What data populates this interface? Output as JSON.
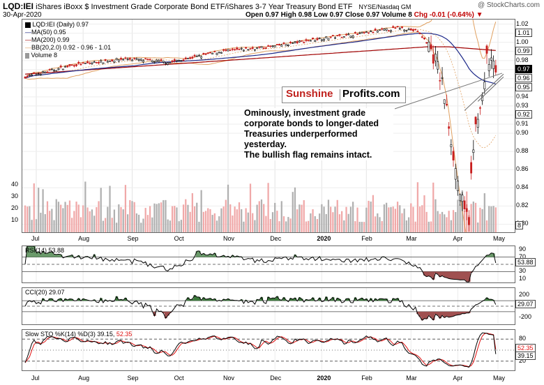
{
  "header": {
    "symbol": "LQD:IEI",
    "name": "iShares iBoxx $ Investment Grade Corporate Bond ETF/iShares 3-7 Year Treasury Bond ETF",
    "exchange": "NYSE/Nasdaq GM",
    "watermark": "@ StockCharts.com",
    "date": "30-Apr-2020",
    "open": "Open 0.97",
    "high": "High 0.98",
    "low": "Low 0.97",
    "close": "Close 0.97",
    "volume": "Volume 8",
    "change": "Chg -0.01 (-0.64%)"
  },
  "colors": {
    "up": "#000000",
    "down": "#c81e1e",
    "ma50": "#1e2a8a",
    "ma200": "#a00000",
    "bb": "#e0a060",
    "vol_up": "#b0b0b0",
    "vol_down": "#f0a8a8",
    "rsi_fill": "#a05050",
    "cci_fill_up": "#3c7a3c",
    "sto_k": "#000000",
    "sto_d": "#e01010"
  },
  "legend": {
    "main": "LQD:IEI (Daily) 0.97",
    "ma50": "MA(50) 0.95",
    "ma200": "MA(200) 0.99",
    "bb": "BB(20,2.0) 0.92 - 0.96 - 1.01",
    "volume": "Volume 8",
    "rsi": "RSI(14) 53.88",
    "cci": "CCI(20) 29.07",
    "sto_prefix": "Slow STO %K(14) %D(3) 39.15,",
    "sto_d_value": "52.35"
  },
  "logo": {
    "part1": "Sunshine",
    "part2": "Profits.com"
  },
  "annotation": [
    "Ominously, investment grade",
    "corporate bonds to longer-dated",
    "Treasuries underperformed",
    "yesterday.",
    "The bullish flag remains intact."
  ],
  "x_labels": [
    "Jul",
    "Aug",
    "Sep",
    "Oct",
    "Nov",
    "Dec",
    "2020",
    "Feb",
    "Mar",
    "Apr",
    "May"
  ],
  "price_axis": [
    "1.02",
    "1.01",
    "1.00",
    "0.99",
    "0.98",
    "0.97",
    "0.96",
    "0.95",
    "0.94",
    "0.93",
    "0.92",
    "0.91",
    "0.90",
    "0.88",
    "0.86",
    "0.84",
    "0.82",
    "0.80"
  ],
  "price_tags": [
    "1.01",
    "0.99",
    "0.97",
    "0.96",
    "0.95",
    "0.92",
    "8"
  ],
  "volume_axis": [
    "40",
    "30",
    "20",
    "10"
  ],
  "rsi_axis": [
    "90",
    "70",
    "30",
    "10"
  ],
  "rsi_tag": "53.88",
  "cci_axis": [
    "200",
    "-200"
  ],
  "cci_tag": "29.07",
  "sto_axis": [
    "80",
    "20"
  ],
  "sto_tags": [
    "52.35",
    "39.15"
  ],
  "chart_data": {
    "type": "candlestick",
    "title": "LQD:IEI (Daily)",
    "period": "Jul 2019 - Apr 2020",
    "price_range": [
      0.8,
      1.025
    ],
    "key_points": [
      {
        "month": "Jul",
        "close": 0.965
      },
      {
        "month": "Aug",
        "close": 0.98
      },
      {
        "month": "Sep",
        "close": 0.98
      },
      {
        "month": "Oct",
        "close": 0.99
      },
      {
        "month": "Nov",
        "close": 0.995
      },
      {
        "month": "Dec",
        "close": 1.005
      },
      {
        "month": "Jan",
        "close": 1.01
      },
      {
        "month": "Feb",
        "close": 1.015
      },
      {
        "month": "early Mar",
        "close": 1.005
      },
      {
        "month": "mid Mar",
        "close": 0.86
      },
      {
        "month": "late Mar low",
        "close": 0.805
      },
      {
        "month": "early Apr",
        "close": 0.95
      },
      {
        "month": "Apr 30",
        "close": 0.97
      }
    ],
    "ma50_last": 0.95,
    "ma200_last": 0.99,
    "bb": {
      "lower": 0.92,
      "mid": 0.96,
      "upper": 1.01
    },
    "volume_last": 8,
    "rsi_last": 53.88,
    "cci_last": 29.07,
    "sto_k_last": 39.15,
    "sto_d_last": 52.35
  }
}
